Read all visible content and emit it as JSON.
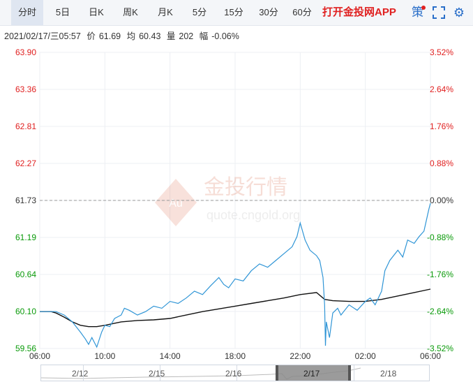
{
  "toolbar": {
    "tabs": [
      {
        "label": "分时",
        "active": true
      },
      {
        "label": "5日"
      },
      {
        "label": "日K"
      },
      {
        "label": "周K"
      },
      {
        "label": "月K"
      },
      {
        "label": "5分"
      },
      {
        "label": "15分"
      },
      {
        "label": "30分"
      },
      {
        "label": "60分"
      }
    ],
    "promo": "打开金投网APP",
    "strategy_label": "策",
    "icons": [
      "fullscreen-icon",
      "settings-icon"
    ]
  },
  "info": {
    "datetime": "2021/02/17/三05:57",
    "price_label": "价",
    "price": "61.69",
    "avg_label": "均",
    "avg": "60.43",
    "vol_label": "量",
    "vol": "202",
    "amp_label": "幅",
    "amp": "-0.06%"
  },
  "watermark": {
    "cn": "金投行情",
    "en": "quote.cngold.org",
    "logo": "Au"
  },
  "colors": {
    "up": "#e02020",
    "down": "#0a9a0a",
    "price_line": "#2f95d6",
    "avg_line": "#111111",
    "ref_line": "#999999"
  },
  "chart_data": {
    "type": "line",
    "y_left_ticks": [
      "63.90",
      "63.36",
      "62.81",
      "62.27",
      "61.73",
      "61.19",
      "60.64",
      "60.10",
      "59.56"
    ],
    "y_right_ticks": [
      "3.52%",
      "2.64%",
      "1.76%",
      "0.88%",
      "0.00%",
      "-0.88%",
      "-1.76%",
      "-2.64%",
      "-3.52%"
    ],
    "x_ticks": [
      "06:00",
      "10:00",
      "14:00",
      "18:00",
      "22:00",
      "02:00",
      "06:00"
    ],
    "ylim": [
      59.56,
      63.9
    ],
    "reference": 61.73,
    "x_hours": [
      0,
      24
    ],
    "series": [
      {
        "key": "price",
        "points": [
          [
            0,
            60.1
          ],
          [
            0.5,
            60.1
          ],
          [
            1.0,
            60.1
          ],
          [
            1.5,
            60.05
          ],
          [
            2.0,
            59.95
          ],
          [
            2.5,
            59.8
          ],
          [
            2.8,
            59.7
          ],
          [
            3.0,
            59.62
          ],
          [
            3.2,
            59.72
          ],
          [
            3.5,
            59.58
          ],
          [
            3.8,
            59.8
          ],
          [
            4.0,
            59.9
          ],
          [
            4.3,
            59.88
          ],
          [
            4.6,
            60.0
          ],
          [
            5.0,
            60.05
          ],
          [
            5.2,
            60.15
          ],
          [
            5.5,
            60.12
          ],
          [
            6.0,
            60.05
          ],
          [
            6.5,
            60.1
          ],
          [
            7.0,
            60.18
          ],
          [
            7.5,
            60.15
          ],
          [
            8.0,
            60.25
          ],
          [
            8.5,
            60.22
          ],
          [
            9.0,
            60.3
          ],
          [
            9.5,
            60.4
          ],
          [
            10.0,
            60.35
          ],
          [
            10.5,
            60.48
          ],
          [
            11.0,
            60.6
          ],
          [
            11.3,
            60.5
          ],
          [
            11.6,
            60.45
          ],
          [
            12.0,
            60.58
          ],
          [
            12.5,
            60.55
          ],
          [
            13.0,
            60.7
          ],
          [
            13.5,
            60.8
          ],
          [
            14.0,
            60.75
          ],
          [
            14.5,
            60.85
          ],
          [
            15.0,
            60.95
          ],
          [
            15.5,
            61.05
          ],
          [
            15.8,
            61.2
          ],
          [
            16.0,
            61.4
          ],
          [
            16.3,
            61.15
          ],
          [
            16.6,
            61.0
          ],
          [
            17.0,
            60.92
          ],
          [
            17.2,
            60.85
          ],
          [
            17.4,
            60.6
          ],
          [
            17.5,
            60.2
          ],
          [
            17.55,
            59.6
          ],
          [
            17.6,
            59.95
          ],
          [
            17.8,
            59.72
          ],
          [
            18.0,
            60.08
          ],
          [
            18.3,
            60.15
          ],
          [
            18.5,
            60.05
          ],
          [
            19.0,
            60.2
          ],
          [
            19.5,
            60.12
          ],
          [
            20.0,
            60.25
          ],
          [
            20.3,
            60.3
          ],
          [
            20.6,
            60.2
          ],
          [
            21.0,
            60.4
          ],
          [
            21.2,
            60.7
          ],
          [
            21.5,
            60.85
          ],
          [
            22.0,
            61.0
          ],
          [
            22.3,
            60.9
          ],
          [
            22.6,
            61.15
          ],
          [
            23.0,
            61.1
          ],
          [
            23.3,
            61.2
          ],
          [
            23.6,
            61.28
          ],
          [
            23.9,
            61.6
          ],
          [
            24.0,
            61.69
          ]
        ]
      },
      {
        "key": "avg",
        "points": [
          [
            0,
            60.1
          ],
          [
            0.7,
            60.1
          ],
          [
            1.0,
            60.08
          ],
          [
            1.5,
            60.02
          ],
          [
            2.0,
            59.95
          ],
          [
            2.5,
            59.9
          ],
          [
            3.0,
            59.88
          ],
          [
            3.5,
            59.88
          ],
          [
            4.0,
            59.9
          ],
          [
            5.0,
            59.95
          ],
          [
            6.0,
            59.97
          ],
          [
            7.0,
            59.98
          ],
          [
            8.0,
            60.0
          ],
          [
            9.0,
            60.05
          ],
          [
            10.0,
            60.1
          ],
          [
            11.0,
            60.14
          ],
          [
            12.0,
            60.18
          ],
          [
            13.0,
            60.22
          ],
          [
            14.0,
            60.26
          ],
          [
            15.0,
            60.3
          ],
          [
            16.0,
            60.35
          ],
          [
            17.0,
            60.38
          ],
          [
            17.5,
            60.28
          ],
          [
            18.0,
            60.26
          ],
          [
            19.0,
            60.25
          ],
          [
            20.0,
            60.25
          ],
          [
            21.0,
            60.28
          ],
          [
            22.0,
            60.33
          ],
          [
            23.0,
            60.38
          ],
          [
            24.0,
            60.43
          ]
        ]
      }
    ]
  },
  "navigator": {
    "labels": [
      "2/12",
      "2/15",
      "2/16",
      "2/17",
      "2/18"
    ]
  }
}
